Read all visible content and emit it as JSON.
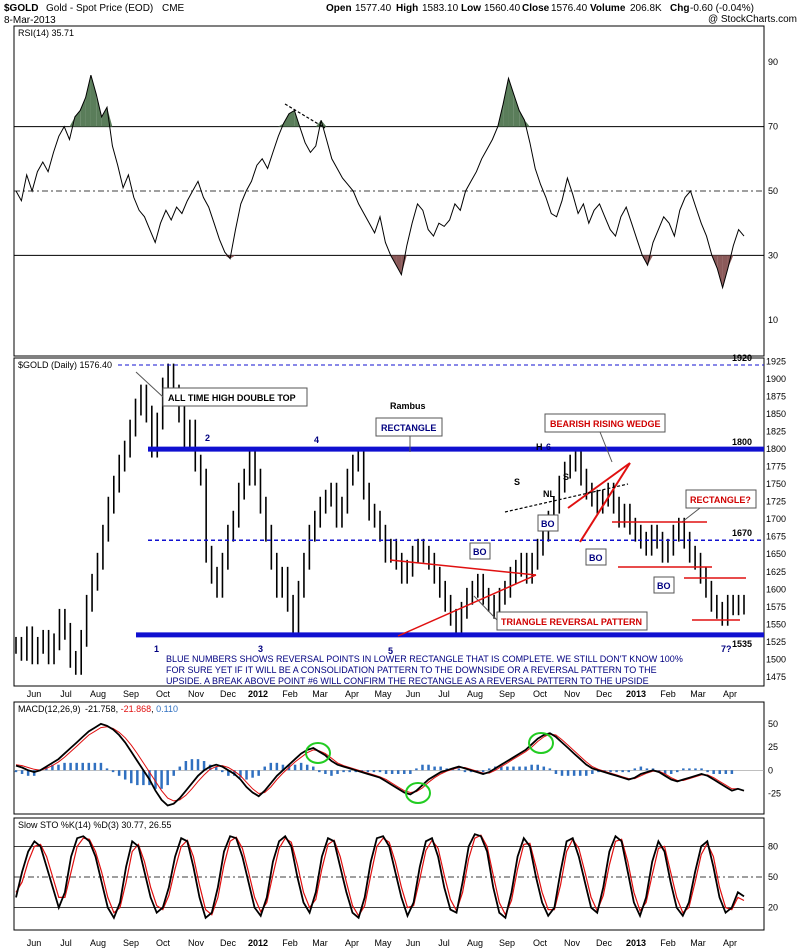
{
  "header": {
    "symbol": "$GOLD",
    "name": "Gold - Spot Price (EOD)",
    "exchange": "CME",
    "date": "8-Mar-2013",
    "watermark": "@ StockCharts.com",
    "open_label": "Open",
    "open": "1577.40",
    "high_label": "High",
    "high": "1583.10",
    "low_label": "Low",
    "low": "1560.40",
    "close_label": "Close",
    "close": "1576.40",
    "volume_label": "Volume",
    "volume": "206.8K",
    "chg_label": "Chg",
    "chg": "-0.60 (-0.04%)"
  },
  "colors": {
    "blue_lines": "#1010d0",
    "red_lines": "#e01010",
    "annotation_red": "#d00000",
    "annotation_blue": "#000080",
    "rsi_fill_high": "#5a7d5a",
    "rsi_fill_low": "#8b5a5a",
    "macd_hist": "#3070c0",
    "signal_red": "#e01010",
    "ellipse_green": "#22cc22"
  },
  "x_axis": {
    "labels": [
      "Jun",
      "Jul",
      "Aug",
      "Sep",
      "Oct",
      "Nov",
      "Dec",
      "2012",
      "Feb",
      "Mar",
      "Apr",
      "May",
      "Jun",
      "Jul",
      "Aug",
      "Sep",
      "Oct",
      "Nov",
      "Dec",
      "2013",
      "Feb",
      "Mar",
      "Apr"
    ],
    "bold_labels": [
      "2012",
      "2013"
    ]
  },
  "chart_data": [
    {
      "type": "line",
      "panel": "rsi",
      "title": "RSI(14) 35.71",
      "y_ticks": [
        90,
        70,
        50,
        30,
        10
      ],
      "ylim": [
        0,
        100
      ],
      "reference_lines": [
        70,
        50,
        30
      ],
      "values": [
        50,
        47,
        55,
        50,
        56,
        59,
        56,
        62,
        67,
        70,
        66,
        73,
        75,
        79,
        86,
        80,
        73,
        76,
        64,
        58,
        51,
        55,
        48,
        44,
        42,
        38,
        34,
        40,
        44,
        41,
        45,
        43,
        47,
        50,
        53,
        48,
        45,
        40,
        35,
        31,
        29,
        38,
        46,
        50,
        53,
        58,
        60,
        57,
        62,
        67,
        71,
        74,
        75,
        70,
        65,
        62,
        64,
        72,
        66,
        60,
        57,
        54,
        52,
        50,
        46,
        43,
        40,
        37,
        42,
        34,
        30,
        27,
        24,
        33,
        40,
        46,
        44,
        38,
        36,
        40,
        39,
        41,
        46,
        44,
        50,
        53,
        56,
        60,
        63,
        66,
        70,
        77,
        85,
        80,
        75,
        72,
        65,
        57,
        52,
        48,
        43,
        42,
        47,
        54,
        49,
        43,
        46,
        40,
        44,
        46,
        42,
        38,
        36,
        42,
        45,
        40,
        35,
        30,
        27,
        34,
        38,
        42,
        40,
        36,
        44,
        48,
        50,
        45,
        40,
        36,
        30,
        26,
        20,
        26,
        33,
        38,
        36
      ],
      "fills_above_70": "dark green",
      "fills_below_30": "dark red"
    },
    {
      "type": "bar",
      "panel": "price",
      "title": "$GOLD (Daily) 1576.40",
      "subtitle": "Rambus",
      "y_ticks": [
        1925,
        1900,
        1875,
        1850,
        1825,
        1800,
        1775,
        1750,
        1725,
        1700,
        1675,
        1650,
        1625,
        1600,
        1575,
        1550,
        1525,
        1500,
        1475
      ],
      "ylim": [
        1462,
        1930
      ],
      "closes": [
        1520,
        1510,
        1535,
        1505,
        1520,
        1530,
        1505,
        1525,
        1560,
        1540,
        1500,
        1490,
        1530,
        1580,
        1610,
        1640,
        1680,
        1720,
        1750,
        1780,
        1800,
        1830,
        1860,
        1880,
        1850,
        1800,
        1840,
        1890,
        1910,
        1880,
        1850,
        1810,
        1830,
        1780,
        1760,
        1650,
        1620,
        1600,
        1640,
        1680,
        1700,
        1740,
        1760,
        1790,
        1760,
        1720,
        1680,
        1640,
        1600,
        1620,
        1580,
        1550,
        1600,
        1640,
        1680,
        1700,
        1720,
        1730,
        1740,
        1700,
        1720,
        1760,
        1780,
        1790,
        1740,
        1710,
        1700,
        1680,
        1650,
        1660,
        1640,
        1620,
        1630,
        1650,
        1660,
        1650,
        1640,
        1620,
        1600,
        1580,
        1560,
        1550,
        1570,
        1590,
        1600,
        1610,
        1590,
        1580,
        1570,
        1590,
        1600,
        1620,
        1630,
        1640,
        1620,
        1640,
        1660,
        1680,
        1700,
        1720,
        1750,
        1770,
        1780,
        1790,
        1760,
        1740,
        1730,
        1720,
        1730,
        1740,
        1720,
        1700,
        1710,
        1690,
        1680,
        1670,
        1660,
        1680,
        1670,
        1650,
        1660,
        1680,
        1690,
        1670,
        1650,
        1640,
        1620,
        1600,
        1580,
        1570,
        1560,
        1580,
        1575,
        1580,
        1576
      ],
      "highs_spread": 12,
      "levels": {
        "top": 1920,
        "upper": 1800,
        "middle": 1670,
        "lower": 1535
      },
      "level_labels": [
        "1920",
        "1800",
        "1670",
        "1535"
      ],
      "annotations": {
        "all_time_high": "ALL TIME HIGH DOUBLE TOP",
        "rectangle": "RECTANGLE",
        "bearish_wedge": "BEARISH RISING WEDGE",
        "rectangle_q": "RECTANGLE?",
        "triangle": "TRIANGLE REVERSAL PATTERN",
        "bo": "BO",
        "h": "H",
        "s": "S",
        "nl": "NL",
        "points": [
          "1",
          "2",
          "3",
          "4",
          "5",
          "6",
          "7?"
        ]
      },
      "note": "BLUE NUMBERS SHOWS REVERSAL POINTS IN LOWER RECTANGLE THAT IS COMPLETE. WE STILL DON'T KNOW 100% FOR SURE YET IF IT WILL BE A CONSOLIDATION PATTERN TO THE DOWNSIDE OR A REVERSAL PATTERN TO THE UPSIDE. A BREAK ABOVE POINT #6 WILL CONFIRM THE RECTANGLE AS A REVERSAL PATTERN TO THE UPSIDE"
    },
    {
      "type": "line",
      "panel": "macd",
      "title_prefix": "MACD(12,26,9)",
      "macd_value": "-21.758",
      "signal_value": "-21.868",
      "hist_value": "0.110",
      "y_ticks": [
        50,
        25,
        0,
        -25
      ],
      "ylim": [
        -45,
        65
      ],
      "macd": [
        5,
        3,
        0,
        -2,
        0,
        4,
        8,
        12,
        18,
        24,
        30,
        36,
        42,
        46,
        50,
        48,
        44,
        38,
        30,
        20,
        10,
        0,
        -10,
        -22,
        -32,
        -38,
        -36,
        -30,
        -22,
        -14,
        -6,
        0,
        4,
        6,
        4,
        0,
        -4,
        -10,
        -18,
        -24,
        -28,
        -22,
        -14,
        -6,
        0,
        6,
        12,
        18,
        22,
        24,
        20,
        16,
        10,
        6,
        4,
        2,
        0,
        -2,
        -4,
        -6,
        -8,
        -12,
        -16,
        -20,
        -24,
        -26,
        -22,
        -16,
        -10,
        -6,
        -2,
        0,
        2,
        4,
        2,
        0,
        -2,
        -4,
        -2,
        2,
        6,
        10,
        14,
        18,
        22,
        28,
        34,
        38,
        40,
        36,
        30,
        24,
        18,
        12,
        6,
        2,
        0,
        -2,
        -4,
        -6,
        -8,
        -10,
        -8,
        -4,
        -2,
        0,
        -2,
        -6,
        -10,
        -12,
        -10,
        -8,
        -6,
        -4,
        -6,
        -10,
        -14,
        -18,
        -22,
        -20,
        -22
      ],
      "signal": [
        6,
        5,
        3,
        1,
        0,
        2,
        5,
        9,
        14,
        20,
        26,
        32,
        38,
        42,
        46,
        47,
        45,
        41,
        35,
        27,
        18,
        8,
        -2,
        -12,
        -22,
        -30,
        -33,
        -32,
        -27,
        -20,
        -12,
        -5,
        1,
        4,
        5,
        3,
        -1,
        -6,
        -13,
        -20,
        -25,
        -24,
        -18,
        -10,
        -3,
        3,
        9,
        14,
        19,
        22,
        21,
        18,
        13,
        8,
        5,
        3,
        1,
        -1,
        -3,
        -5,
        -7,
        -10,
        -14,
        -18,
        -22,
        -24,
        -23,
        -19,
        -13,
        -8,
        -4,
        -1,
        1,
        3,
        3,
        1,
        -1,
        -3,
        -3,
        0,
        4,
        8,
        12,
        16,
        20,
        25,
        31,
        36,
        39,
        38,
        33,
        27,
        21,
        15,
        9,
        4,
        1,
        -1,
        -3,
        -5,
        -7,
        -9,
        -9,
        -6,
        -3,
        -1,
        -1,
        -4,
        -8,
        -11,
        -11,
        -9,
        -7,
        -5,
        -5,
        -8,
        -12,
        -16,
        -20,
        -20,
        -22
      ]
    },
    {
      "type": "line",
      "panel": "stochastic",
      "title": "Slow STO %K(14) %D(3) 30.77, 26.55",
      "y_ticks": [
        80,
        50,
        20
      ],
      "ylim": [
        0,
        100
      ],
      "k": [
        30,
        55,
        75,
        85,
        80,
        60,
        40,
        20,
        35,
        70,
        88,
        90,
        85,
        70,
        45,
        20,
        10,
        25,
        60,
        85,
        80,
        55,
        30,
        15,
        20,
        40,
        70,
        88,
        85,
        60,
        30,
        10,
        15,
        40,
        75,
        90,
        88,
        70,
        45,
        20,
        12,
        30,
        65,
        85,
        90,
        80,
        50,
        25,
        15,
        35,
        70,
        88,
        85,
        60,
        35,
        15,
        10,
        30,
        65,
        88,
        90,
        80,
        55,
        30,
        12,
        25,
        60,
        85,
        88,
        70,
        40,
        18,
        15,
        45,
        80,
        92,
        90,
        75,
        40,
        15,
        10,
        35,
        70,
        88,
        80,
        50,
        25,
        12,
        20,
        55,
        85,
        88,
        70,
        45,
        20,
        15,
        40,
        75,
        90,
        85,
        55,
        25,
        12,
        30,
        65,
        85,
        75,
        45,
        20,
        12,
        25,
        55,
        80,
        85,
        60,
        30,
        15,
        20,
        35,
        31
      ],
      "d": [
        35,
        45,
        65,
        80,
        82,
        70,
        50,
        30,
        30,
        55,
        80,
        88,
        87,
        75,
        55,
        30,
        15,
        20,
        45,
        75,
        82,
        65,
        40,
        22,
        18,
        32,
        58,
        80,
        86,
        70,
        42,
        18,
        13,
        30,
        62,
        85,
        89,
        78,
        55,
        30,
        16,
        25,
        52,
        78,
        88,
        84,
        62,
        35,
        20,
        28,
        58,
        82,
        86,
        70,
        45,
        22,
        12,
        22,
        52,
        80,
        88,
        84,
        65,
        40,
        20,
        22,
        48,
        76,
        86,
        78,
        52,
        28,
        17,
        35,
        68,
        88,
        91,
        80,
        52,
        25,
        13,
        27,
        58,
        82,
        83,
        60,
        35,
        18,
        18,
        42,
        75,
        87,
        78,
        55,
        30,
        17,
        32,
        62,
        85,
        87,
        65,
        35,
        17,
        25,
        52,
        78,
        80,
        55,
        30,
        15,
        20,
        45,
        72,
        83,
        70,
        40,
        20,
        18,
        30,
        27
      ]
    }
  ]
}
